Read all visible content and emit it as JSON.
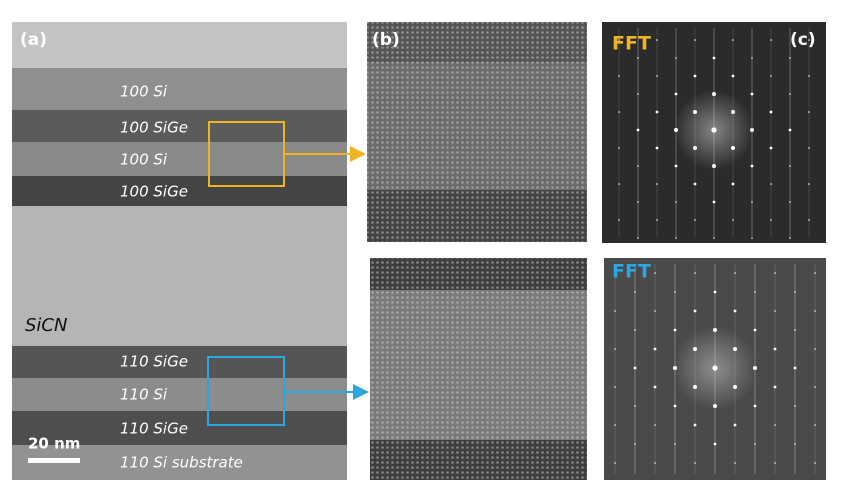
{
  "panel_a": {
    "label": "(a)",
    "layers": [
      "100 Si",
      "100 SiGe",
      "100 Si",
      "100 SiGe",
      "110 SiGe",
      "110 Si",
      "110 SiGe",
      "110 Si substrate"
    ],
    "material": "SiCN",
    "scale_bar": "20 nm"
  },
  "panel_b": {
    "label": "(b)"
  },
  "panel_c": {
    "label": "(c)",
    "fft_top": "FFT",
    "fft_bottom": "FFT"
  }
}
